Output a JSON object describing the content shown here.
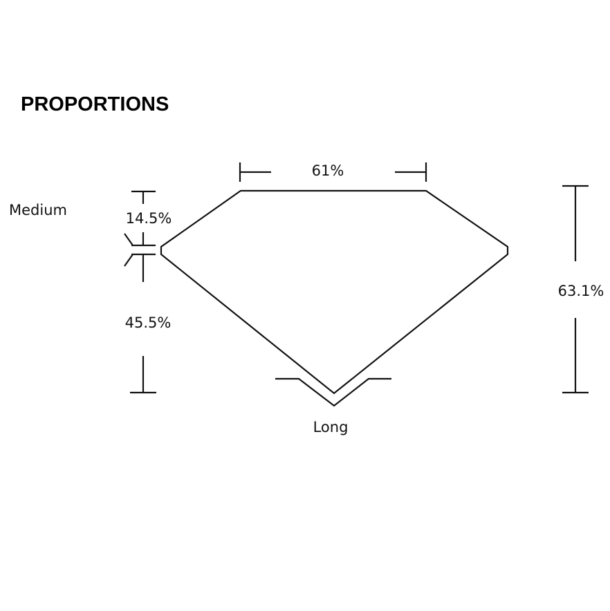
{
  "title": "PROPORTIONS",
  "labels": {
    "table": "61%",
    "crown_height": "14.5%",
    "pavilion_depth": "45.5%",
    "total_depth": "63.1%",
    "girdle": "Medium",
    "culet": "Long"
  },
  "colors": {
    "line": "#111111",
    "background": "#ffffff"
  }
}
